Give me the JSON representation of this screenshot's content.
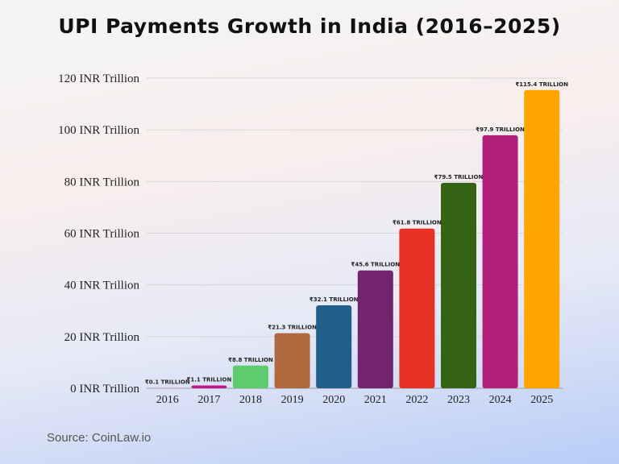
{
  "chart_data": {
    "type": "bar",
    "title": "UPI Payments Growth in India (2016–2025)",
    "xlabel": "",
    "ylabel": "",
    "categories": [
      "2016",
      "2017",
      "2018",
      "2019",
      "2020",
      "2021",
      "2022",
      "2023",
      "2024",
      "2025"
    ],
    "values": [
      0.1,
      1.1,
      8.8,
      21.3,
      32.1,
      45.6,
      61.8,
      79.5,
      97.9,
      115.4
    ],
    "data_labels": [
      "₹0.1 TRILLION",
      "₹1.1 TRILLION",
      "₹8.8 TRILLION",
      "₹21.3 TRILLION",
      "₹32.1 TRILLION",
      "₹45.6 TRILLION",
      "₹61.8 TRILLION",
      "₹79.5 TRILLION",
      "₹97.9 TRILLION",
      "₹115.4 TRILLION"
    ],
    "colors": [
      "#d9a0c0",
      "#c0168a",
      "#5ccc6e",
      "#b0683f",
      "#1f5f8a",
      "#72246e",
      "#e63125",
      "#346314",
      "#b01f7a",
      "#ffa500"
    ],
    "ylim": [
      0,
      120
    ],
    "yticks": [
      0,
      20,
      40,
      60,
      80,
      100,
      120
    ],
    "ytick_labels": [
      "0 INR Trillion",
      "20 INR Trillion",
      "40 INR Trillion",
      "60 INR Trillion",
      "80 INR Trillion",
      "100 INR Trillion",
      "120 INR Trillion"
    ],
    "grid": true,
    "source": "Source: CoinLaw.io"
  }
}
